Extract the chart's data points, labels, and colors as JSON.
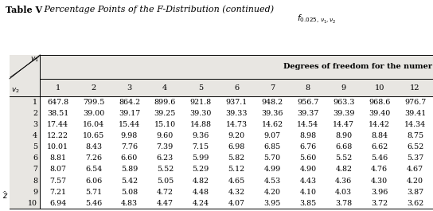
{
  "title_bold": "Table V",
  "title_rest": "   Percentage Points of the F-Distribution (continued)",
  "f_label": "f_{0.025,v_1,v_2}",
  "col_header_text": "Degrees of freedom for the numer",
  "col_numbers": [
    "1",
    "2",
    "3",
    "4",
    "5",
    "6",
    "7",
    "8",
    "9",
    "10",
    "12"
  ],
  "row_labels": [
    "1",
    "2",
    "3",
    "4",
    "5",
    "6",
    "7",
    "8",
    "9",
    "10"
  ],
  "data_str_vals": [
    [
      "647.8",
      "799.5",
      "864.2",
      "899.6",
      "921.8",
      "937.1",
      "948.2",
      "956.7",
      "963.3",
      "968.6",
      "976.7"
    ],
    [
      "38.51",
      "39.00",
      "39.17",
      "39.25",
      "39.30",
      "39.33",
      "39.36",
      "39.37",
      "39.39",
      "39.40",
      "39.41"
    ],
    [
      "17.44",
      "16.04",
      "15.44",
      "15.10",
      "14.88",
      "14.73",
      "14.62",
      "14.54",
      "14.47",
      "14.42",
      "14.34"
    ],
    [
      "12.22",
      "10.65",
      "9.98",
      "9.60",
      "9.36",
      "9.20",
      "9.07",
      "8.98",
      "8.90",
      "8.84",
      "8.75"
    ],
    [
      "10.01",
      "8.43",
      "7.76",
      "7.39",
      "7.15",
      "6.98",
      "6.85",
      "6.76",
      "6.68",
      "6.62",
      "6.52"
    ],
    [
      "8.81",
      "7.26",
      "6.60",
      "6.23",
      "5.99",
      "5.82",
      "5.70",
      "5.60",
      "5.52",
      "5.46",
      "5.37"
    ],
    [
      "8.07",
      "6.54",
      "5.89",
      "5.52",
      "5.29",
      "5.12",
      "4.99",
      "4.90",
      "4.82",
      "4.76",
      "4.67"
    ],
    [
      "7.57",
      "6.06",
      "5.42",
      "5.05",
      "4.82",
      "4.65",
      "4.53",
      "4.43",
      "4.36",
      "4.30",
      "4.20"
    ],
    [
      "7.21",
      "5.71",
      "5.08",
      "4.72",
      "4.48",
      "4.32",
      "4.20",
      "4.10",
      "4.03",
      "3.96",
      "3.87"
    ],
    [
      "6.94",
      "5.46",
      "4.83",
      "4.47",
      "4.24",
      "4.07",
      "3.95",
      "3.85",
      "3.78",
      "3.72",
      "3.62"
    ]
  ],
  "bg_gray": "#e8e6e2",
  "white": "#ffffff",
  "black": "#000000"
}
